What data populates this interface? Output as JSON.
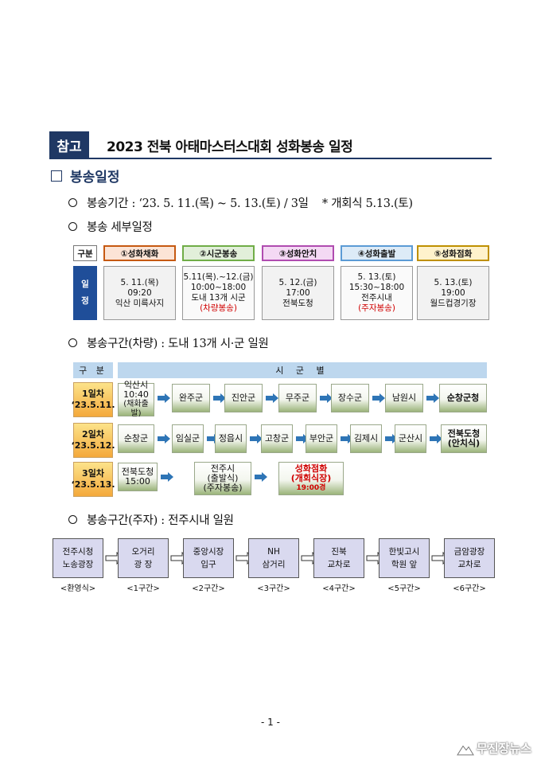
{
  "title": {
    "tag": "참고",
    "text": "2023 전북 아태마스터스대회 성화봉송 일정"
  },
  "section": {
    "label": "봉송일정"
  },
  "lines": {
    "period": "봉송기간 : ‘23. 5. 11.(목) ~ 5. 13.(토) / 3일    * 개회식 5.13.(토)",
    "detail": "봉송 세부일정",
    "vehicle": "봉송구간(차량) : 도내 13개 시·군 일원",
    "parking": "봉송구간(주자) : 전주시내 일원"
  },
  "schedule": {
    "col_label": "구분",
    "row_label": [
      "일",
      "정"
    ],
    "stages": [
      {
        "title": "①성화채화",
        "lines": [
          "5. 11.(목)",
          "09:20",
          "익산 미륵사지"
        ],
        "red": "",
        "color": "#fce4d6",
        "border": "#c65911"
      },
      {
        "title": "②시군봉송",
        "lines": [
          "5.11(목).~12.(금)",
          "10:00~18:00",
          "도내 13개 시군"
        ],
        "red": "(차량봉송)",
        "color": "#e2efda",
        "border": "#70ad47"
      },
      {
        "title": "③성화안치",
        "lines": [
          "5. 12.(금)",
          "17:00",
          "전북도청"
        ],
        "red": "",
        "color": "#f4d9f4",
        "border": "#b04cb0"
      },
      {
        "title": "④성화출발",
        "lines": [
          "5. 13.(토)",
          "15:30~18:00",
          "전주시내"
        ],
        "red": "(주자봉송)",
        "color": "#ddebf7",
        "border": "#5b9bd5"
      },
      {
        "title": "⑤성화점화",
        "lines": [
          "5. 13.(토)",
          "19:00",
          "월드컵경기장"
        ],
        "red": "",
        "color": "#fff2cc",
        "border": "#bf9000"
      }
    ]
  },
  "route": {
    "header_left": "구 분",
    "header_right": "시 군 별",
    "days": [
      {
        "day": "1일차",
        "date": "‘23.5.11."
      },
      {
        "day": "2일차",
        "date": "‘23.5.12."
      },
      {
        "day": "3일차",
        "date": "‘23.5.13."
      }
    ],
    "day1": [
      {
        "lines": [
          "익산시",
          "10:40"
        ],
        "note": "(채화출발)"
      },
      {
        "lines": [
          "완주군"
        ]
      },
      {
        "lines": [
          "진안군"
        ]
      },
      {
        "lines": [
          "무주군"
        ]
      },
      {
        "lines": [
          "장수군"
        ]
      },
      {
        "lines": [
          "남원시"
        ]
      },
      {
        "lines": [
          "순창군청"
        ]
      }
    ],
    "day2": [
      {
        "lines": [
          "순창군"
        ]
      },
      {
        "lines": [
          "임실군"
        ]
      },
      {
        "lines": [
          "정읍시"
        ]
      },
      {
        "lines": [
          "고창군"
        ]
      },
      {
        "lines": [
          "부안군"
        ]
      },
      {
        "lines": [
          "김제시"
        ]
      },
      {
        "lines": [
          "군산시"
        ]
      },
      {
        "lines": [
          "전북도청",
          "(안치식)"
        ]
      }
    ],
    "day3": [
      {
        "lines": [
          "전북도청",
          "15:00"
        ]
      },
      {
        "lines": [
          "전주시",
          "(출발식)",
          "(주자봉송)"
        ]
      },
      {
        "lines": [
          "성화점화",
          "(개회식장)"
        ],
        "time": "19:00경"
      }
    ]
  },
  "parking": {
    "stops": [
      {
        "lines": [
          "전주시청",
          "노송광장"
        ],
        "label": "<환영식>"
      },
      {
        "lines": [
          "오거리",
          "광 장"
        ],
        "label": "<1구간>"
      },
      {
        "lines": [
          "중앙시장",
          "입구"
        ],
        "label": "<2구간>"
      },
      {
        "lines": [
          "NH",
          "삼거리"
        ],
        "label": "<3구간>"
      },
      {
        "lines": [
          "진북",
          "교차로"
        ],
        "label": "<4구간>"
      },
      {
        "lines": [
          "한빛고시",
          "학원 앞"
        ],
        "label": "<5구간>"
      },
      {
        "lines": [
          "금암광장",
          "교차로"
        ],
        "label": "<6구간>"
      }
    ]
  },
  "footer": {
    "page": "- 1 -",
    "watermark": "무진장뉴스"
  },
  "colors": {
    "navy": "#1f3864",
    "arrow_blue": "#2e75b6",
    "route_header": "#bdd7ee",
    "stop_fill": "#d9d9ef"
  }
}
